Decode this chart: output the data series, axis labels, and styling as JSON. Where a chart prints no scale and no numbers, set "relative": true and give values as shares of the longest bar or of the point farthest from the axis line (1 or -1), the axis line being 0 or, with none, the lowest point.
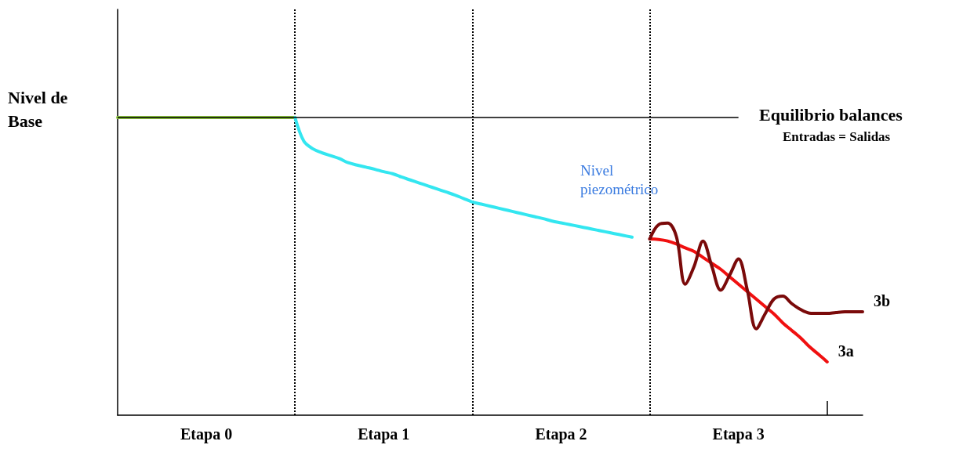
{
  "chart_data": {
    "type": "line",
    "relative": true,
    "ylabel": "Nivel de Base",
    "categories": [
      null,
      null,
      null,
      null,
      null,
      null,
      null,
      null,
      null,
      null,
      "Etapa 0",
      null,
      null,
      null,
      null,
      null,
      null,
      null,
      null,
      null,
      null,
      null,
      null,
      null,
      null,
      null,
      null,
      null,
      null,
      null,
      "Etapa 1",
      null,
      null,
      null,
      null,
      null,
      null,
      null,
      null,
      null,
      null,
      null,
      null,
      null,
      null,
      null,
      null,
      null,
      null,
      null,
      "Etapa 2",
      null,
      null,
      null,
      null,
      null,
      null,
      null,
      null,
      null,
      null,
      null,
      null,
      null,
      null,
      null,
      null,
      null,
      null,
      null,
      "Etapa 3",
      null,
      null,
      null,
      null,
      null,
      null,
      null,
      null,
      null,
      null,
      null,
      null,
      null,
      null
    ],
    "series": [
      {
        "color": "#8dc63f",
        "values": [
          1,
          1,
          1,
          1,
          1,
          1,
          1,
          1,
          1,
          1,
          1,
          1,
          1,
          1,
          1,
          1,
          1,
          1,
          1,
          1,
          1,
          null,
          null,
          null,
          null,
          null,
          null,
          null,
          null,
          null,
          null,
          null,
          null,
          null,
          null,
          null,
          null,
          null,
          null,
          null,
          null,
          null,
          null,
          null,
          null,
          null,
          null,
          null,
          null,
          null,
          null,
          null,
          null,
          null,
          null,
          null,
          null,
          null,
          null,
          null,
          null,
          null,
          null,
          null,
          null,
          null,
          null,
          null,
          null,
          null,
          null,
          null,
          null,
          null,
          null,
          null,
          null,
          null,
          null,
          null,
          null,
          null,
          null,
          null,
          null
        ]
      },
      {
        "color": "#33e6f0",
        "values": [
          null,
          null,
          null,
          null,
          null,
          null,
          null,
          null,
          null,
          null,
          null,
          null,
          null,
          null,
          null,
          null,
          null,
          null,
          null,
          null,
          1,
          0.92,
          0.895,
          0.882,
          0.872,
          0.862,
          0.848,
          0.84,
          0.833,
          0.826,
          0.818,
          0.811,
          0.8,
          0.79,
          0.78,
          0.77,
          0.76,
          0.75,
          0.74,
          0.728,
          0.716,
          0.709,
          0.702,
          0.695,
          0.688,
          0.681,
          0.674,
          0.667,
          0.66,
          0.652,
          0.646,
          0.64,
          0.634,
          0.628,
          0.622,
          0.616,
          0.61,
          0.604,
          0.598,
          null,
          null,
          null,
          null,
          null,
          null,
          null,
          null,
          null,
          null,
          null,
          null,
          null,
          null,
          null,
          null,
          null,
          null,
          null,
          null,
          null,
          null,
          null,
          null,
          null,
          null
        ]
      },
      {
        "name": "3a",
        "color": "#f01010",
        "values": [
          null,
          null,
          null,
          null,
          null,
          null,
          null,
          null,
          null,
          null,
          null,
          null,
          null,
          null,
          null,
          null,
          null,
          null,
          null,
          null,
          null,
          null,
          null,
          null,
          null,
          null,
          null,
          null,
          null,
          null,
          null,
          null,
          null,
          null,
          null,
          null,
          null,
          null,
          null,
          null,
          null,
          null,
          null,
          null,
          null,
          null,
          null,
          null,
          null,
          null,
          null,
          null,
          null,
          null,
          null,
          null,
          null,
          null,
          null,
          null,
          0.592,
          0.59,
          0.585,
          0.575,
          0.562,
          0.55,
          0.53,
          0.51,
          0.49,
          0.465,
          0.44,
          0.415,
          0.39,
          0.365,
          0.34,
          0.31,
          0.285,
          0.26,
          0.23,
          0.205,
          0.179,
          null,
          null,
          null,
          null
        ]
      },
      {
        "name": "3b",
        "color": "#7a0a0a",
        "values": [
          null,
          null,
          null,
          null,
          null,
          null,
          null,
          null,
          null,
          null,
          null,
          null,
          null,
          null,
          null,
          null,
          null,
          null,
          null,
          null,
          null,
          null,
          null,
          null,
          null,
          null,
          null,
          null,
          null,
          null,
          null,
          null,
          null,
          null,
          null,
          null,
          null,
          null,
          null,
          null,
          null,
          null,
          null,
          null,
          null,
          null,
          null,
          null,
          null,
          null,
          null,
          null,
          null,
          null,
          null,
          null,
          null,
          null,
          null,
          null,
          0.592,
          0.64,
          0.645,
          0.6,
          0.44,
          0.5,
          0.585,
          0.5,
          0.42,
          0.47,
          0.525,
          0.42,
          0.29,
          0.34,
          0.39,
          0.4,
          0.375,
          0.355,
          0.343,
          0.342,
          0.342,
          0.345,
          0.347,
          0.347,
          0.347
        ]
      }
    ],
    "ref_lines": [
      {
        "axis": "y",
        "value": 1,
        "label": "Equilibrio balances",
        "color": "#000000",
        "line_style": "solid"
      }
    ],
    "annotations": [
      "Nivel piezométrico",
      "Entradas = Salidas"
    ],
    "grid": "x",
    "marker": "none",
    "line_style": "solid",
    "legend": false
  }
}
